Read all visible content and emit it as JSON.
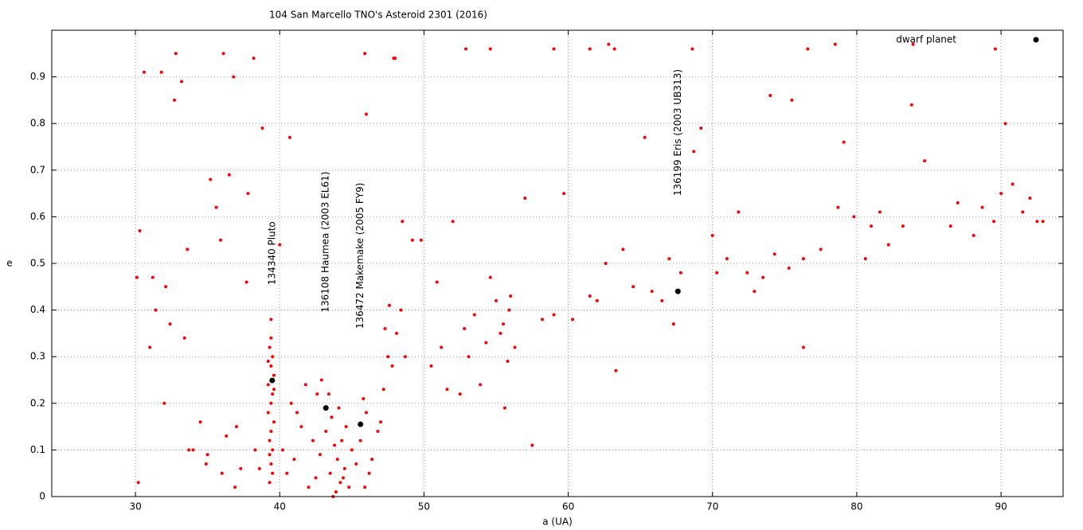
{
  "chart_data": {
    "type": "scatter",
    "title": "104 San Marcello TNO's Asteroid 2301 (2016)",
    "x_label": "a (UA)",
    "y_label": "e",
    "xlim": [
      24.2,
      94.3
    ],
    "ylim": [
      0,
      1.0
    ],
    "xticks": [
      30,
      40,
      50,
      60,
      70,
      80,
      90
    ],
    "yticks": [
      0,
      0.1,
      0.2,
      0.3,
      0.4,
      0.5,
      0.6,
      0.7,
      0.8,
      0.9
    ],
    "grid": true,
    "legend": "top-right",
    "series": [
      {
        "color": "#ff0000",
        "x": [
          39.3,
          39.4,
          39.5,
          39.2,
          39.6,
          39.4,
          39.3,
          39.5,
          39.4,
          39.2,
          39.5,
          39.3,
          39.4,
          39.6,
          39.2,
          39.4,
          39.5,
          39.3,
          39.6,
          39.4,
          43.5,
          44.0,
          44.2,
          43.8,
          44.5,
          43.2,
          44.8,
          42.8,
          43.6,
          44.3,
          43.9,
          44.6,
          42.5,
          45.0,
          43.4,
          44.1,
          42.9,
          45.3,
          43.7,
          44.4,
          45.6,
          46.0,
          46.4,
          45.8,
          46.8,
          47.2,
          47.5,
          46.2,
          45.9,
          47.0,
          41.0,
          41.5,
          40.8,
          42.0,
          41.8,
          40.5,
          42.3,
          41.2,
          40.2,
          42.6,
          30.1,
          30.3,
          30.6,
          31.2,
          31.8,
          32.1,
          32.4,
          33.2,
          33.6,
          34.5,
          35.2,
          35.6,
          35.9,
          36.1,
          36.5,
          36.8,
          37.0,
          37.3,
          37.7,
          38.2,
          32.8,
          32.7,
          31.4,
          33.4,
          34.0,
          35.0,
          36.3,
          37.8,
          38.8,
          40.7,
          30.2,
          31.0,
          32.0,
          33.7,
          34.9,
          36.0,
          36.9,
          38.3,
          38.6,
          40.0,
          47.6,
          48.1,
          48.5,
          47.8,
          48.4,
          47.3,
          48.0,
          49.2,
          49.8,
          48.7,
          50.5,
          51.2,
          52.0,
          52.8,
          53.5,
          54.3,
          55.0,
          55.5,
          56.0,
          55.8,
          50.9,
          51.6,
          52.5,
          53.1,
          53.9,
          54.6,
          55.3,
          55.6,
          55.9,
          56.3,
          57.0,
          57.5,
          58.2,
          59.0,
          59.7,
          60.3,
          61.5,
          62.0,
          62.6,
          63.3,
          63.8,
          64.5,
          65.3,
          65.8,
          66.5,
          67.0,
          67.3,
          67.8,
          68.7,
          69.2,
          70.0,
          70.3,
          71.0,
          71.8,
          72.4,
          72.9,
          73.5,
          74.3,
          75.3,
          76.3,
          76.3,
          76.6,
          77.5,
          78.5,
          78.7,
          79.1,
          79.8,
          80.6,
          81.6,
          82.2,
          83.2,
          83.8,
          84.7,
          87.0,
          88.1,
          88.7,
          89.5,
          90.0,
          90.3,
          90.8,
          91.5,
          92.0,
          92.5,
          92.9,
          74.0,
          75.5,
          83.9,
          89.6,
          86.5,
          81.0,
          45.9,
          46.0,
          47.9,
          52.9,
          54.6,
          59.0,
          61.5,
          62.8,
          63.2,
          68.6
        ],
        "values": [
          0.32,
          0.28,
          0.22,
          0.18,
          0.26,
          0.14,
          0.09,
          0.3,
          0.34,
          0.24,
          0.05,
          0.12,
          0.2,
          0.16,
          0.29,
          0.38,
          0.1,
          0.03,
          0.23,
          0.07,
          0.05,
          0.08,
          0.03,
          0.11,
          0.06,
          0.14,
          0.02,
          0.09,
          0.17,
          0.12,
          0.01,
          0.15,
          0.04,
          0.1,
          0.22,
          0.19,
          0.25,
          0.07,
          0.0,
          0.04,
          0.12,
          0.18,
          0.08,
          0.21,
          0.14,
          0.23,
          0.3,
          0.05,
          0.02,
          0.16,
          0.08,
          0.15,
          0.2,
          0.02,
          0.24,
          0.05,
          0.12,
          0.18,
          0.1,
          0.22,
          0.47,
          0.57,
          0.91,
          0.47,
          0.91,
          0.45,
          0.37,
          0.89,
          0.53,
          0.16,
          0.68,
          0.62,
          0.55,
          0.95,
          0.69,
          0.9,
          0.15,
          0.06,
          0.46,
          0.94,
          0.95,
          0.85,
          0.4,
          0.34,
          0.1,
          0.09,
          0.13,
          0.65,
          0.79,
          0.77,
          0.03,
          0.32,
          0.2,
          0.1,
          0.07,
          0.05,
          0.02,
          0.1,
          0.06,
          0.54,
          0.41,
          0.35,
          0.59,
          0.28,
          0.4,
          0.36,
          0.94,
          0.55,
          0.55,
          0.3,
          0.28,
          0.32,
          0.59,
          0.36,
          0.39,
          0.33,
          0.42,
          0.37,
          0.43,
          0.29,
          0.46,
          0.23,
          0.22,
          0.3,
          0.24,
          0.47,
          0.35,
          0.19,
          0.4,
          0.32,
          0.64,
          0.11,
          0.38,
          0.39,
          0.65,
          0.38,
          0.43,
          0.42,
          0.5,
          0.27,
          0.53,
          0.45,
          0.77,
          0.44,
          0.42,
          0.51,
          0.37,
          0.48,
          0.74,
          0.79,
          0.56,
          0.48,
          0.51,
          0.61,
          0.48,
          0.44,
          0.47,
          0.52,
          0.49,
          0.51,
          0.32,
          0.96,
          0.53,
          0.97,
          0.62,
          0.76,
          0.6,
          0.51,
          0.61,
          0.54,
          0.58,
          0.84,
          0.72,
          0.63,
          0.56,
          0.62,
          0.59,
          0.65,
          0.8,
          0.67,
          0.61,
          0.64,
          0.59,
          0.59,
          0.86,
          0.85,
          0.97,
          0.96,
          0.58,
          0.58,
          0.95,
          0.82,
          0.94,
          0.96,
          0.96,
          0.96,
          0.96,
          0.97,
          0.96,
          0.96
        ]
      },
      {
        "name": "dwarf planet",
        "color": "#000000",
        "x": [
          39.48,
          43.2,
          45.6,
          67.6
        ],
        "values": [
          0.249,
          0.19,
          0.155,
          0.44
        ],
        "labels": [
          "134340 Pluto",
          "136108 Haumea (2003 EL61)",
          "136472 Makemake (2005 FY9)",
          "136199 Eris (2003 UB313)"
        ]
      }
    ]
  }
}
